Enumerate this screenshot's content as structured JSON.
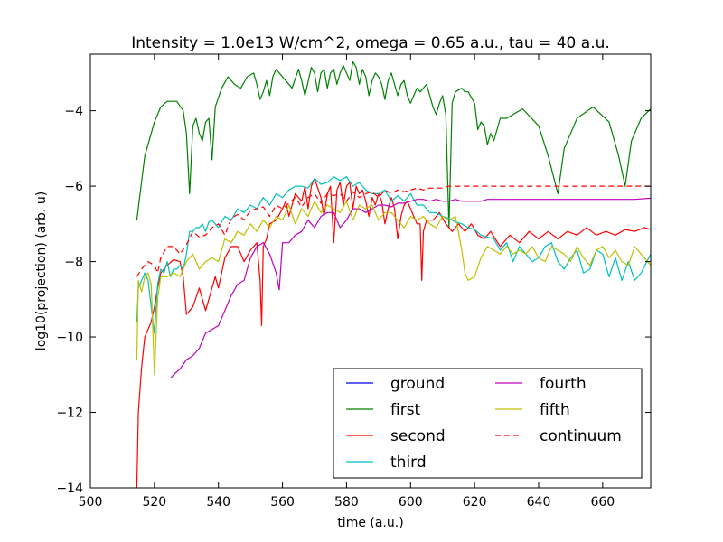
{
  "chart_data": {
    "type": "line",
    "title": "Intensity = 1.0e13 W/cm^2, omega = 0.65 a.u., tau = 40 a.u.",
    "xlabel": "time (a.u.)",
    "ylabel": "log10(projection) (arb. u)",
    "xlim": [
      500,
      675
    ],
    "ylim": [
      -14,
      -2.5
    ],
    "xticks": [
      500,
      520,
      540,
      560,
      580,
      600,
      620,
      640,
      660
    ],
    "xtick_labels": [
      "500",
      "520",
      "540",
      "560",
      "580",
      "600",
      "620",
      "640",
      "660"
    ],
    "yticks": [
      -14,
      -12,
      -10,
      -8,
      -6,
      -4
    ],
    "ytick_labels": [
      "−14",
      "−12",
      "−10",
      "−8",
      "−6",
      "−4"
    ],
    "grid": false,
    "legend_position": "lower-right",
    "legend_columns": 2,
    "series": [
      {
        "name": "ground",
        "color": "#0000ff",
        "style": "solid",
        "x": [],
        "y": []
      },
      {
        "name": "first",
        "color": "#008000",
        "style": "solid",
        "x": [
          514.5,
          517,
          520,
          522,
          524,
          527,
          529,
          530,
          531,
          532,
          533,
          534,
          535,
          536,
          537,
          538,
          539,
          541,
          543,
          545,
          547,
          549,
          551,
          552,
          553,
          554,
          555,
          556,
          557,
          558,
          559,
          561,
          563,
          565,
          566,
          567,
          569,
          570,
          571,
          572,
          573,
          574,
          575,
          576,
          577,
          578,
          579,
          581,
          582,
          583,
          584,
          585,
          586,
          587,
          588,
          589,
          590,
          591,
          592,
          593,
          594,
          595,
          596,
          597,
          598,
          599,
          600,
          601,
          602,
          603,
          605,
          607,
          608,
          609,
          610,
          611,
          612,
          613,
          614,
          616,
          617,
          618,
          620,
          621,
          622,
          623,
          624,
          625,
          626,
          628,
          630,
          635,
          640,
          643,
          646,
          648,
          652,
          657,
          662,
          665,
          667,
          669,
          672,
          675
        ],
        "y": [
          -6.9,
          -5.2,
          -4.3,
          -3.9,
          -3.75,
          -3.75,
          -4.0,
          -4.6,
          -6.2,
          -4.4,
          -4.2,
          -4.6,
          -4.8,
          -4.3,
          -4.2,
          -5.3,
          -3.9,
          -3.4,
          -3.1,
          -3.3,
          -3.4,
          -3.1,
          -3.0,
          -3.3,
          -3.7,
          -3.5,
          -3.2,
          -3.6,
          -3.1,
          -2.9,
          -3.0,
          -3.2,
          -3.4,
          -2.9,
          -3.2,
          -3.6,
          -2.85,
          -3.0,
          -3.5,
          -3.0,
          -2.9,
          -3.4,
          -3.0,
          -2.9,
          -3.3,
          -3.0,
          -2.8,
          -3.2,
          -2.7,
          -2.85,
          -3.3,
          -2.9,
          -3.1,
          -3.6,
          -3.2,
          -3.0,
          -3.1,
          -3.3,
          -3.7,
          -3.2,
          -3.0,
          -3.3,
          -3.6,
          -3.3,
          -3.2,
          -3.6,
          -3.8,
          -3.6,
          -3.4,
          -3.5,
          -3.3,
          -3.9,
          -4.1,
          -3.8,
          -3.6,
          -4.1,
          -7.1,
          -3.8,
          -3.5,
          -3.4,
          -3.5,
          -3.5,
          -3.8,
          -4.5,
          -4.3,
          -4.4,
          -4.9,
          -4.6,
          -4.8,
          -4.2,
          -4.2,
          -3.95,
          -4.4,
          -5.2,
          -6.2,
          -5.0,
          -4.2,
          -3.9,
          -4.3,
          -5.2,
          -6.0,
          -4.8,
          -4.2,
          -3.95
        ]
      },
      {
        "name": "second",
        "color": "#ff0000",
        "style": "solid",
        "x": [
          514.5,
          515,
          516,
          517,
          518,
          519,
          520,
          521,
          522,
          524,
          526,
          528,
          529,
          530,
          532,
          534,
          536,
          538,
          539,
          540,
          542,
          544,
          546,
          548,
          550,
          552,
          553,
          553.5,
          554,
          555,
          556,
          558,
          560,
          561,
          562,
          564,
          566,
          567,
          568,
          569,
          570,
          572,
          573,
          574,
          575,
          576,
          577,
          578,
          579,
          580,
          581,
          582,
          583,
          584,
          585,
          586,
          587,
          588,
          589,
          590,
          591,
          592,
          593,
          594,
          595,
          596,
          597,
          598,
          599,
          600,
          601,
          602,
          603,
          603.5,
          604,
          605,
          607,
          609,
          611,
          613,
          615,
          617,
          619,
          621,
          623,
          625,
          628,
          631,
          634,
          637,
          640,
          643,
          646,
          649,
          652,
          655,
          658,
          661,
          664,
          667,
          670,
          673,
          675
        ],
        "y": [
          -14,
          -12.0,
          -10.8,
          -10.0,
          -9.8,
          -9.6,
          -9.2,
          -8.7,
          -8.3,
          -8.1,
          -7.95,
          -8.0,
          -8.4,
          -9.4,
          -9.2,
          -8.7,
          -9.3,
          -8.7,
          -8.4,
          -8.7,
          -7.9,
          -7.6,
          -7.6,
          -8.0,
          -7.7,
          -7.5,
          -8.5,
          -9.7,
          -7.6,
          -7.4,
          -7.0,
          -6.9,
          -6.6,
          -6.4,
          -6.8,
          -6.2,
          -6.4,
          -6.0,
          -6.6,
          -6.0,
          -5.8,
          -6.3,
          -6.8,
          -6.2,
          -6.0,
          -7.5,
          -6.1,
          -5.9,
          -6.5,
          -6.0,
          -5.9,
          -6.6,
          -6.0,
          -6.2,
          -6.1,
          -6.4,
          -6.8,
          -6.3,
          -6.5,
          -6.2,
          -6.4,
          -7.0,
          -6.6,
          -6.3,
          -6.6,
          -7.4,
          -6.8,
          -6.5,
          -6.4,
          -6.6,
          -6.8,
          -7.0,
          -7.0,
          -8.5,
          -7.2,
          -6.9,
          -6.9,
          -6.7,
          -7.0,
          -7.2,
          -7.0,
          -7.2,
          -7.0,
          -7.3,
          -7.4,
          -7.2,
          -7.6,
          -7.3,
          -7.5,
          -7.2,
          -7.4,
          -7.2,
          -7.4,
          -7.2,
          -7.3,
          -7.1,
          -7.3,
          -7.2,
          -7.3,
          -7.15,
          -7.2,
          -7.1,
          -7.15
        ]
      },
      {
        "name": "third",
        "color": "#00bfbf",
        "style": "solid",
        "x": [
          514.5,
          515,
          516,
          517,
          518,
          519,
          520,
          521,
          522,
          523,
          524,
          525,
          526,
          527,
          528,
          529,
          530,
          531,
          532,
          533,
          534,
          535,
          536,
          537,
          538,
          540,
          542,
          544,
          546,
          548,
          550,
          552,
          554,
          556,
          558,
          560,
          562,
          564,
          566,
          568,
          570,
          572,
          574,
          576,
          578,
          580,
          582,
          584,
          586,
          588,
          590,
          592,
          594,
          596,
          598,
          600,
          602,
          604,
          606,
          608,
          610,
          612,
          614,
          616,
          618,
          620,
          622,
          624,
          626,
          628,
          630,
          632,
          634,
          636,
          638,
          640,
          642,
          644,
          646,
          648,
          650,
          652,
          654,
          656,
          658,
          660,
          662,
          664,
          666,
          668,
          670,
          672,
          675
        ],
        "y": [
          -9.6,
          -8.7,
          -8.5,
          -8.3,
          -8.5,
          -9.2,
          -9.9,
          -8.6,
          -8.2,
          -8.3,
          -8.0,
          -8.4,
          -8.2,
          -8.2,
          -8.1,
          -8.2,
          -7.8,
          -7.2,
          -7.2,
          -7.1,
          -7.1,
          -7.0,
          -7.2,
          -6.95,
          -6.9,
          -7.1,
          -6.8,
          -6.9,
          -6.6,
          -6.7,
          -6.5,
          -6.6,
          -6.3,
          -6.5,
          -6.2,
          -6.3,
          -6.1,
          -6.0,
          -6.0,
          -6.05,
          -5.8,
          -5.95,
          -5.9,
          -5.75,
          -5.85,
          -5.75,
          -6.0,
          -5.9,
          -6.1,
          -6.2,
          -6.2,
          -6.1,
          -6.4,
          -6.25,
          -6.4,
          -6.2,
          -6.5,
          -6.5,
          -6.7,
          -6.7,
          -6.8,
          -6.85,
          -6.95,
          -7.0,
          -7.1,
          -7.15,
          -7.3,
          -7.35,
          -7.4,
          -7.7,
          -7.5,
          -8.0,
          -7.6,
          -7.8,
          -8.0,
          -7.9,
          -7.6,
          -7.5,
          -8.0,
          -8.2,
          -7.9,
          -7.7,
          -8.3,
          -8.2,
          -7.7,
          -7.8,
          -8.4,
          -7.9,
          -8.5,
          -8.0,
          -8.5,
          -8.3,
          -7.8
        ]
      },
      {
        "name": "fourth",
        "color": "#bf00bf",
        "style": "solid",
        "x": [
          525,
          526,
          528,
          530,
          532,
          534,
          536,
          538,
          540,
          542,
          544,
          546,
          548,
          550,
          552,
          554,
          556,
          558,
          559,
          560,
          562,
          564,
          566,
          568,
          570,
          572,
          574,
          576,
          578,
          580,
          582,
          584,
          586,
          588,
          590,
          592,
          594,
          596,
          598,
          600,
          602,
          604,
          606,
          608,
          610,
          612,
          614,
          616,
          618,
          620,
          622,
          624,
          626,
          628,
          630,
          632,
          636,
          640,
          645,
          650,
          655,
          660,
          665,
          670,
          675
        ],
        "y": [
          -11.1,
          -11.0,
          -10.85,
          -10.6,
          -10.5,
          -10.3,
          -9.9,
          -9.8,
          -9.7,
          -9.3,
          -8.9,
          -8.6,
          -8.5,
          -7.9,
          -7.6,
          -7.5,
          -7.8,
          -8.3,
          -8.75,
          -7.5,
          -7.5,
          -7.3,
          -7.2,
          -6.9,
          -7.1,
          -6.8,
          -6.7,
          -6.7,
          -7.1,
          -6.9,
          -6.6,
          -6.6,
          -6.7,
          -6.6,
          -6.5,
          -6.5,
          -6.55,
          -6.45,
          -6.45,
          -6.4,
          -6.35,
          -6.35,
          -6.4,
          -6.35,
          -6.4,
          -6.4,
          -6.35,
          -6.4,
          -6.4,
          -6.4,
          -6.4,
          -6.35,
          -6.35,
          -6.35,
          -6.35,
          -6.35,
          -6.35,
          -6.35,
          -6.35,
          -6.35,
          -6.35,
          -6.35,
          -6.35,
          -6.35,
          -6.32
        ]
      },
      {
        "name": "fifth",
        "color": "#bfbf00",
        "style": "solid",
        "x": [
          514.5,
          515,
          516,
          517,
          518,
          519,
          520,
          521,
          522,
          524,
          526,
          528,
          530,
          532,
          534,
          536,
          538,
          540,
          542,
          544,
          546,
          548,
          550,
          552,
          554,
          556,
          558,
          560,
          562,
          564,
          566,
          568,
          570,
          572,
          574,
          576,
          578,
          580,
          582,
          584,
          586,
          588,
          590,
          592,
          594,
          596,
          598,
          600,
          602,
          604,
          606,
          608,
          610,
          612,
          614,
          616,
          617,
          618,
          620,
          622,
          624,
          626,
          628,
          630,
          632,
          634,
          636,
          638,
          640,
          642,
          644,
          646,
          648,
          650,
          652,
          654,
          656,
          658,
          660,
          662,
          664,
          666,
          668,
          670,
          672,
          675
        ],
        "y": [
          -10.6,
          -8.5,
          -8.8,
          -8.4,
          -8.3,
          -8.6,
          -11.0,
          -9.0,
          -8.4,
          -8.4,
          -8.3,
          -8.4,
          -8.0,
          -7.8,
          -8.2,
          -8.0,
          -7.9,
          -8.0,
          -7.4,
          -7.5,
          -7.2,
          -7.3,
          -7.0,
          -7.2,
          -6.9,
          -7.1,
          -6.8,
          -6.9,
          -6.5,
          -7.0,
          -6.6,
          -6.8,
          -6.4,
          -6.7,
          -6.5,
          -6.6,
          -6.7,
          -6.4,
          -6.9,
          -6.5,
          -6.6,
          -6.5,
          -6.9,
          -6.7,
          -6.7,
          -6.9,
          -7.1,
          -6.8,
          -6.9,
          -6.8,
          -7.0,
          -7.1,
          -6.8,
          -6.9,
          -6.8,
          -7.7,
          -8.3,
          -8.5,
          -8.4,
          -7.9,
          -7.6,
          -7.7,
          -7.8,
          -7.6,
          -7.8,
          -7.7,
          -7.8,
          -7.6,
          -7.9,
          -8.0,
          -7.6,
          -7.7,
          -7.8,
          -8.0,
          -7.6,
          -7.9,
          -8.1,
          -7.7,
          -7.6,
          -7.9,
          -7.7,
          -8.0,
          -8.1,
          -7.6,
          -7.8,
          -8.1
        ]
      },
      {
        "name": "continuum",
        "color": "#ff0000",
        "style": "dashed",
        "x": [
          514.5,
          516,
          518,
          520,
          521,
          522,
          524,
          526,
          528,
          530,
          532,
          534,
          536,
          538,
          540,
          542,
          544,
          546,
          548,
          550,
          552,
          554,
          556,
          558,
          560,
          562,
          564,
          566,
          568,
          570,
          572,
          574,
          576,
          578,
          580,
          582,
          584,
          586,
          588,
          590,
          592,
          594,
          596,
          598,
          600,
          602,
          604,
          606,
          608,
          610,
          612,
          615,
          620,
          625,
          630,
          640,
          650,
          660,
          670,
          675
        ],
        "y": [
          -8.4,
          -8.2,
          -8.0,
          -8.1,
          -8.3,
          -7.9,
          -7.6,
          -7.6,
          -7.8,
          -7.55,
          -7.2,
          -7.35,
          -7.3,
          -7.1,
          -7.0,
          -7.3,
          -6.85,
          -6.75,
          -6.9,
          -6.65,
          -6.6,
          -6.55,
          -6.8,
          -6.5,
          -6.6,
          -6.45,
          -6.3,
          -6.55,
          -6.3,
          -6.2,
          -6.45,
          -6.2,
          -6.25,
          -6.2,
          -6.4,
          -6.15,
          -6.3,
          -6.2,
          -6.15,
          -6.3,
          -6.1,
          -6.2,
          -6.1,
          -6.15,
          -6.1,
          -6.05,
          -6.1,
          -6.05,
          -6.05,
          -6.05,
          -6.0,
          -6.0,
          -6.0,
          -6.0,
          -6.0,
          -6.0,
          -6.0,
          -6.0,
          -6.0,
          -6.0
        ]
      }
    ]
  }
}
